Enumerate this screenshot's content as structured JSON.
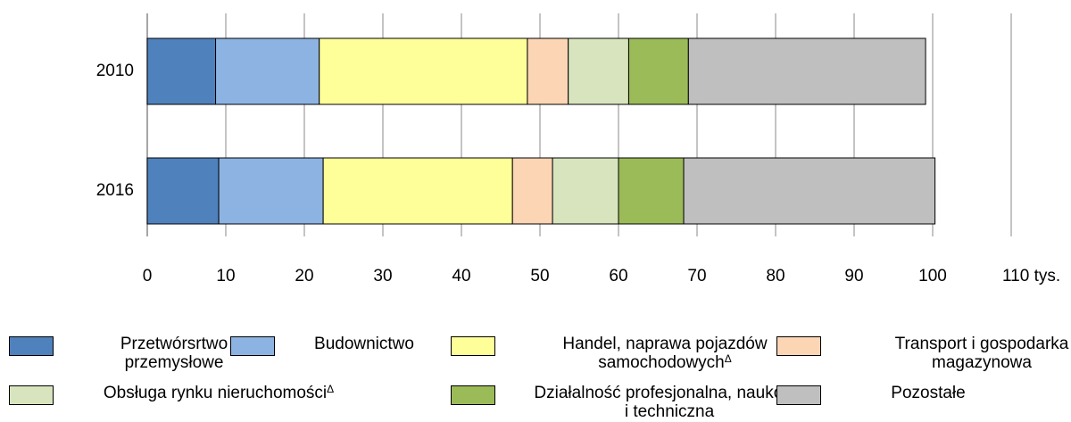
{
  "chart_data": {
    "type": "stacked-bar-horizontal",
    "categories": [
      "2010",
      "2016"
    ],
    "series": [
      {
        "name": "Przetwórsrtwo przemysłowe",
        "color": "#4f81bd",
        "values": [
          8.7,
          9.1
        ]
      },
      {
        "name": "Budownictwo",
        "color": "#8db3e2",
        "values": [
          13.2,
          13.3
        ]
      },
      {
        "name": "Handel, naprawa pojazdów samochodowychΔ",
        "color": "#ffff99",
        "values": [
          26.5,
          24.1
        ]
      },
      {
        "name": "Transport i gospodarka magazynowa",
        "color": "#fcd5b5",
        "values": [
          5.2,
          5.1
        ]
      },
      {
        "name": "Obsługa rynku nieruchomościΔ",
        "color": "#d7e4bd",
        "values": [
          7.7,
          8.4
        ]
      },
      {
        "name": "Działalność profesjonalna, naukowa i techniczna",
        "color": "#9bbb59",
        "values": [
          7.6,
          8.3
        ]
      },
      {
        "name": "Pozostałe",
        "color": "#bfbfbf",
        "values": [
          30.2,
          32.0
        ]
      }
    ],
    "xlim": [
      0,
      110
    ],
    "xticks": [
      0,
      10,
      20,
      30,
      40,
      50,
      60,
      70,
      80,
      90,
      100,
      {
        "value": 110,
        "label": "110 tys."
      }
    ],
    "grid": true
  }
}
